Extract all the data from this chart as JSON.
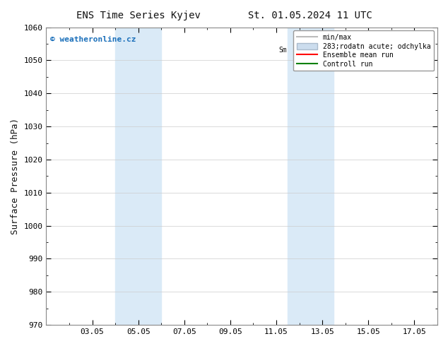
{
  "title_left": "ENS Time Series Kyjev",
  "title_right": "St. 01.05.2024 11 UTC",
  "ylabel": "Surface Pressure (hPa)",
  "ylim": [
    970,
    1060
  ],
  "yticks": [
    970,
    980,
    990,
    1000,
    1010,
    1020,
    1030,
    1040,
    1050,
    1060
  ],
  "xtick_labels": [
    "03.05",
    "05.05",
    "07.05",
    "09.05",
    "11.05",
    "13.05",
    "15.05",
    "17.05"
  ],
  "xtick_positions": [
    3,
    5,
    7,
    9,
    11,
    13,
    15,
    17
  ],
  "xmin": 1.0,
  "xmax": 18.0,
  "shaded_bands": [
    {
      "xmin": 4.0,
      "xmax": 6.0,
      "color": "#daeaf7"
    },
    {
      "xmin": 11.5,
      "xmax": 13.5,
      "color": "#daeaf7"
    }
  ],
  "watermark_text": "© weatheronline.cz",
  "watermark_color": "#1a6fba",
  "legend_label_1": "min/max",
  "legend_label_2": "283;rodatn acute; odchylka",
  "legend_label_3": "Ensemble mean run",
  "legend_label_4": "Controll run",
  "legend_color_1": "#bbbbbb",
  "legend_color_2": "#ccddee",
  "legend_color_3": "#ff0000",
  "legend_color_4": "#008000",
  "bg_color": "#ffffff",
  "plot_bg_color": "#f8f8ff",
  "grid_color": "#cccccc",
  "font_color": "#111111",
  "sm_prefix": "Sm"
}
